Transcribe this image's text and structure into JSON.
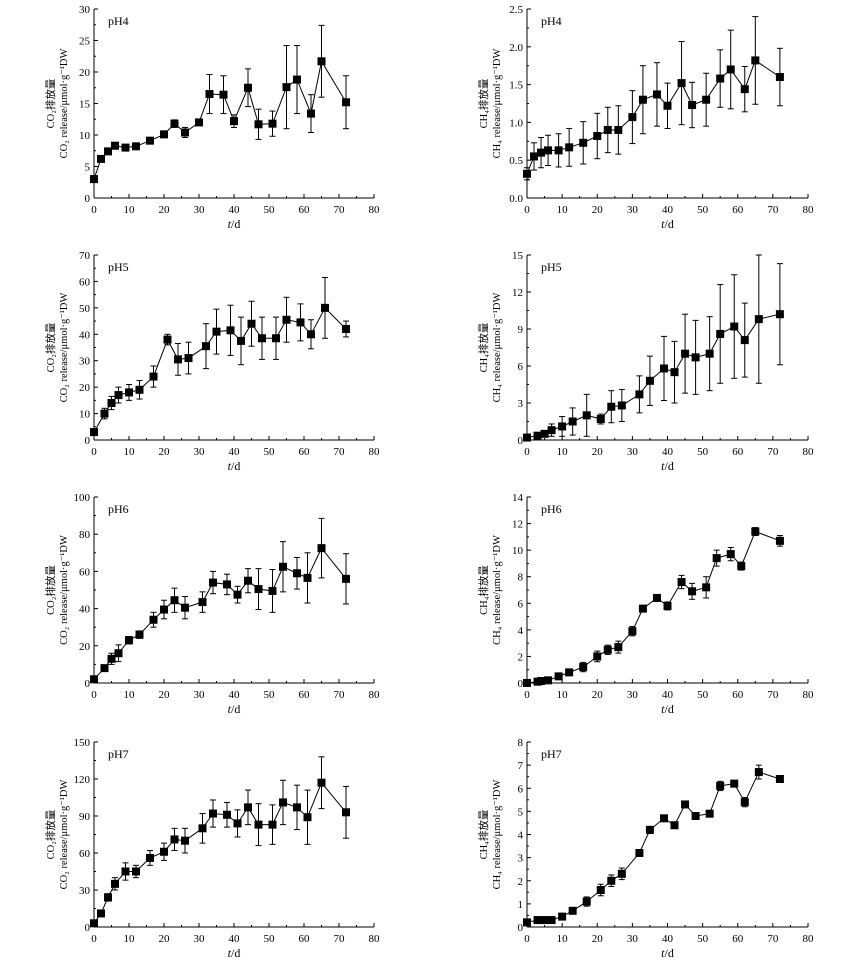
{
  "chart_data": [
    {
      "type": "line",
      "panel_label": "pH4",
      "ylabel_cn": "CO₂排放量",
      "ylabel": "CO₂ release/μmol·g⁻¹DW",
      "xlabel": "t/d",
      "xlim": [
        0,
        80
      ],
      "xticks": [
        0,
        10,
        20,
        30,
        40,
        50,
        60,
        70,
        80
      ],
      "ylim": [
        0,
        30
      ],
      "yticks": [
        0,
        5,
        10,
        15,
        20,
        25,
        30
      ],
      "x": [
        0,
        2,
        4,
        6,
        9,
        12,
        16,
        20,
        23,
        26,
        30,
        33,
        37,
        40,
        44,
        47,
        51,
        55,
        58,
        62,
        65,
        72
      ],
      "y": [
        3,
        6.2,
        7.4,
        8.3,
        8.0,
        8.2,
        9.1,
        10.1,
        11.8,
        10.4,
        12.0,
        16.5,
        16.4,
        12.2,
        17.5,
        11.7,
        11.8,
        17.6,
        18.8,
        13.4,
        21.7,
        15.2
      ],
      "err": [
        0.3,
        0.3,
        0.3,
        0.3,
        0.3,
        0.3,
        0.5,
        0.5,
        0.6,
        0.8,
        0.5,
        3.1,
        3.0,
        1.0,
        3.0,
        2.4,
        2.0,
        6.6,
        5.4,
        3.0,
        5.7,
        4.2
      ]
    },
    {
      "type": "line",
      "panel_label": "pH4",
      "ylabel_cn": "CH₄排放量",
      "ylabel": "CH₄ release/μmol·g⁻¹DW",
      "xlabel": "t/d",
      "xlim": [
        0,
        80
      ],
      "xticks": [
        0,
        10,
        20,
        30,
        40,
        50,
        60,
        70,
        80
      ],
      "ylim": [
        0,
        2.5
      ],
      "yticks": [
        0,
        0.5,
        1.0,
        1.5,
        2.0,
        2.5
      ],
      "x": [
        0,
        2,
        4,
        6,
        9,
        12,
        16,
        20,
        23,
        26,
        30,
        33,
        37,
        40,
        44,
        47,
        51,
        55,
        58,
        62,
        65,
        72
      ],
      "y": [
        0.32,
        0.55,
        0.6,
        0.63,
        0.63,
        0.67,
        0.73,
        0.82,
        0.9,
        0.9,
        1.07,
        1.3,
        1.37,
        1.22,
        1.52,
        1.23,
        1.3,
        1.58,
        1.7,
        1.44,
        1.82,
        1.6
      ],
      "err": [
        0.08,
        0.18,
        0.2,
        0.2,
        0.22,
        0.25,
        0.28,
        0.3,
        0.3,
        0.32,
        0.35,
        0.45,
        0.42,
        0.3,
        0.55,
        0.3,
        0.35,
        0.38,
        0.52,
        0.3,
        0.58,
        0.38
      ]
    },
    {
      "type": "line",
      "panel_label": "pH5",
      "ylabel_cn": "CO₂排放量",
      "ylabel": "CO₂ release/μmol·g⁻¹DW",
      "xlabel": "t/d",
      "xlim": [
        0,
        80
      ],
      "xticks": [
        0,
        10,
        20,
        30,
        40,
        50,
        60,
        70,
        80
      ],
      "ylim": [
        0,
        70
      ],
      "yticks": [
        0,
        10,
        20,
        30,
        40,
        50,
        60,
        70
      ],
      "x": [
        0,
        3,
        5,
        7,
        10,
        13,
        17,
        21,
        24,
        27,
        32,
        35,
        39,
        42,
        45,
        48,
        52,
        55,
        59,
        62,
        66,
        72
      ],
      "y": [
        3.0,
        10.0,
        14.0,
        17.0,
        18.0,
        19.0,
        24.0,
        38.0,
        30.5,
        31.0,
        35.5,
        41.0,
        41.5,
        37.5,
        44.0,
        38.5,
        38.5,
        45.5,
        44.5,
        40.0,
        50.0,
        42.0
      ],
      "err": [
        1.0,
        2.0,
        2.5,
        3.0,
        3.0,
        3.5,
        4.0,
        2.0,
        6.0,
        6.0,
        8.5,
        8.5,
        9.5,
        9.0,
        8.5,
        8.0,
        8.0,
        8.5,
        7.0,
        5.5,
        11.5,
        3.0
      ]
    },
    {
      "type": "line",
      "panel_label": "pH5",
      "ylabel_cn": "CH₄排放量",
      "ylabel": "CH₄ release/μmol·g⁻¹DW",
      "xlabel": "t/d",
      "xlim": [
        0,
        80
      ],
      "xticks": [
        0,
        10,
        20,
        30,
        40,
        50,
        60,
        70,
        80
      ],
      "ylim": [
        0,
        15
      ],
      "yticks": [
        0,
        3,
        6,
        9,
        12,
        15
      ],
      "x": [
        0,
        3,
        5,
        7,
        10,
        13,
        17,
        21,
        24,
        27,
        32,
        35,
        39,
        42,
        45,
        48,
        52,
        55,
        59,
        62,
        66,
        72
      ],
      "y": [
        0.2,
        0.35,
        0.5,
        0.8,
        1.1,
        1.5,
        2.0,
        1.7,
        2.7,
        2.8,
        3.7,
        4.8,
        5.8,
        5.5,
        7.0,
        6.7,
        7.0,
        8.6,
        9.2,
        8.1,
        9.8,
        10.2
      ],
      "err": [
        0.1,
        0.15,
        0.25,
        0.5,
        0.8,
        1.1,
        1.7,
        0.4,
        1.3,
        1.3,
        1.5,
        2.0,
        2.6,
        2.5,
        3.2,
        3.0,
        3.0,
        4.0,
        4.2,
        3.0,
        5.2,
        4.1
      ]
    },
    {
      "type": "line",
      "panel_label": "pH6",
      "ylabel_cn": "CO₂排放量",
      "ylabel": "CO₂ release/μmol·g⁻¹DW",
      "xlabel": "t/d",
      "xlim": [
        0,
        80
      ],
      "xticks": [
        0,
        10,
        20,
        30,
        40,
        50,
        60,
        70,
        80
      ],
      "ylim": [
        0,
        100
      ],
      "yticks": [
        0,
        20,
        40,
        60,
        80,
        100
      ],
      "x": [
        0,
        3,
        5,
        7,
        10,
        13,
        17,
        20,
        23,
        26,
        31,
        34,
        38,
        41,
        44,
        47,
        51,
        54,
        58,
        61,
        65,
        72
      ],
      "y": [
        2.0,
        8.0,
        13.0,
        16.0,
        23.0,
        26.0,
        34.0,
        39.5,
        44.5,
        40.5,
        43.5,
        54.0,
        53.0,
        47.5,
        55.0,
        50.5,
        49.5,
        62.5,
        59.0,
        56.5,
        72.5,
        56.0
      ],
      "err": [
        0.8,
        1.2,
        3.0,
        4.5,
        2.0,
        2.0,
        4.0,
        5.0,
        6.5,
        6.0,
        5.5,
        6.0,
        5.5,
        4.5,
        6.5,
        11.0,
        11.5,
        13.5,
        8.5,
        13.5,
        16.0,
        13.5
      ]
    },
    {
      "type": "line",
      "panel_label": "pH6",
      "ylabel_cn": "CH₄排放量",
      "ylabel": "CH₄ release/μmol·g⁻¹DW",
      "xlabel": "t/d",
      "xlim": [
        0,
        80
      ],
      "xticks": [
        0,
        10,
        20,
        30,
        40,
        50,
        60,
        70,
        80
      ],
      "ylim": [
        0,
        14
      ],
      "yticks": [
        0,
        2,
        4,
        6,
        8,
        10,
        12,
        14
      ],
      "x": [
        0,
        3,
        4,
        6,
        9,
        12,
        16,
        20,
        23,
        26,
        30,
        33,
        37,
        40,
        44,
        47,
        51,
        54,
        58,
        61,
        65,
        72
      ],
      "y": [
        0.0,
        0.1,
        0.15,
        0.2,
        0.5,
        0.8,
        1.2,
        2.0,
        2.5,
        2.7,
        3.9,
        5.6,
        6.4,
        5.8,
        7.6,
        6.9,
        7.2,
        9.4,
        9.7,
        8.8,
        11.4,
        10.7
      ],
      "err": [
        0.05,
        0.05,
        0.05,
        0.1,
        0.1,
        0.15,
        0.35,
        0.4,
        0.35,
        0.45,
        0.35,
        0.2,
        0.2,
        0.3,
        0.5,
        0.6,
        0.8,
        0.6,
        0.5,
        0.3,
        0.3,
        0.4
      ]
    },
    {
      "type": "line",
      "panel_label": "pH7",
      "ylabel_cn": "CO₂排放量",
      "ylabel": "CO₂ release/μmol·g⁻¹DW",
      "xlabel": "t/d",
      "xlim": [
        0,
        80
      ],
      "xticks": [
        0,
        10,
        20,
        30,
        40,
        50,
        60,
        70,
        80
      ],
      "ylim": [
        0,
        150
      ],
      "yticks": [
        0,
        30,
        60,
        90,
        120,
        150
      ],
      "x": [
        0,
        2,
        4,
        6,
        9,
        12,
        16,
        20,
        23,
        26,
        31,
        34,
        38,
        41,
        44,
        47,
        51,
        54,
        58,
        61,
        65,
        72
      ],
      "y": [
        3.0,
        11.0,
        24.0,
        35.0,
        45.0,
        45.0,
        56.0,
        61.0,
        71.0,
        70.0,
        80.0,
        92.0,
        91.0,
        84.0,
        97.0,
        83.0,
        83.0,
        101.0,
        97.0,
        89.0,
        117.0,
        93.0
      ],
      "err": [
        1.5,
        2.0,
        3.0,
        5.0,
        7.0,
        5.0,
        6.0,
        7.0,
        9.0,
        10.0,
        12.0,
        11.0,
        10.0,
        11.0,
        14.0,
        17.0,
        16.0,
        18.0,
        18.0,
        22.0,
        21.0,
        21.0
      ]
    },
    {
      "type": "line",
      "panel_label": "pH7",
      "ylabel_cn": "CH₄排放量",
      "ylabel": "CH₄ release/μmol·g⁻¹DW",
      "xlabel": "t/d",
      "xlim": [
        0,
        80
      ],
      "xticks": [
        0,
        10,
        20,
        30,
        40,
        50,
        60,
        70,
        80
      ],
      "ylim": [
        0,
        8
      ],
      "yticks": [
        0,
        1,
        2,
        3,
        4,
        5,
        6,
        7,
        8
      ],
      "x": [
        0,
        3,
        5,
        7,
        10,
        13,
        17,
        21,
        24,
        27,
        32,
        35,
        39,
        42,
        45,
        48,
        52,
        55,
        59,
        62,
        66,
        72
      ],
      "y": [
        0.2,
        0.3,
        0.3,
        0.3,
        0.45,
        0.7,
        1.1,
        1.6,
        2.0,
        2.3,
        3.2,
        4.2,
        4.7,
        4.4,
        5.3,
        4.8,
        4.9,
        6.1,
        6.2,
        5.4,
        6.7,
        6.4
      ],
      "err": [
        0.05,
        0.05,
        0.05,
        0.05,
        0.08,
        0.1,
        0.2,
        0.25,
        0.25,
        0.25,
        0.1,
        0.15,
        0.1,
        0.1,
        0.1,
        0.1,
        0.1,
        0.2,
        0.1,
        0.2,
        0.3,
        0.15
      ]
    }
  ]
}
